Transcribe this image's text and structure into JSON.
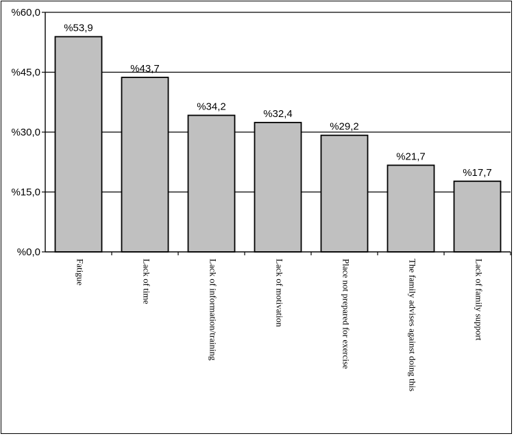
{
  "chart_data": {
    "type": "bar",
    "categories": [
      "Fatigue",
      "Lack of time",
      "Lack of information/training",
      "Lack of motivation",
      "Place not prepared for exercise",
      "The family advises against doing this",
      "Lack of family support"
    ],
    "values": [
      53.9,
      43.7,
      34.2,
      32.4,
      29.2,
      21.7,
      17.7
    ],
    "value_labels": [
      "%53,9",
      "%43,7",
      "%34,2",
      "%32,4",
      "%29,2",
      "%21,7",
      "%17,7"
    ],
    "y_ticks": [
      0,
      15,
      30,
      45,
      60
    ],
    "y_tick_labels": [
      "%0,0",
      "%15,0",
      "%30,0",
      "%45,0",
      "%60,0"
    ],
    "ylim": [
      0,
      60
    ],
    "grid": true,
    "legend": "none",
    "bar_color": "#c0c0c0",
    "bar_edge_color": "#000000",
    "grid_color": "#000000"
  }
}
